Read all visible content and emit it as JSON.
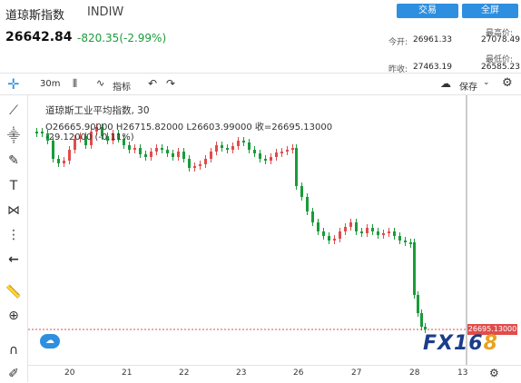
{
  "header": {
    "title": "道琼斯指数",
    "code": "INDIW",
    "trade_btn": "交易",
    "account_btn": "全屏"
  },
  "quote": {
    "price": "26642.84",
    "change": "-820.35(-2.99%)",
    "open_label": "今开:",
    "open": "26961.33",
    "high_label": "最高价:",
    "high": "27078.49",
    "prev_label": "昨收:",
    "prev": "27463.19",
    "low_label": "最低价:",
    "low": "26585.23"
  },
  "toolbar": {
    "interval": "30m",
    "indicators": "指标",
    "save": "保存"
  },
  "legend": {
    "name": "道琼斯工业平均指数, 30",
    "ohlc": "O26665.90000  H26715.82000  L26603.99000  收=26695.13000",
    "chg": "-29.12000  (-0.11%)"
  },
  "price_tag": "26695.13000",
  "x_labels": [
    "20",
    "21",
    "22",
    "23",
    "26",
    "27",
    "28",
    "13"
  ],
  "logo": {
    "main": "FX16",
    "accent": "8"
  },
  "colors": {
    "up": "#e04c4c",
    "down": "#1a9b3a",
    "accent": "#2e8fe0"
  },
  "chart_data": {
    "type": "candlestick",
    "x": [
      "20",
      "21",
      "22",
      "23",
      "26",
      "27",
      "28"
    ],
    "last_close": 26695.13
  }
}
